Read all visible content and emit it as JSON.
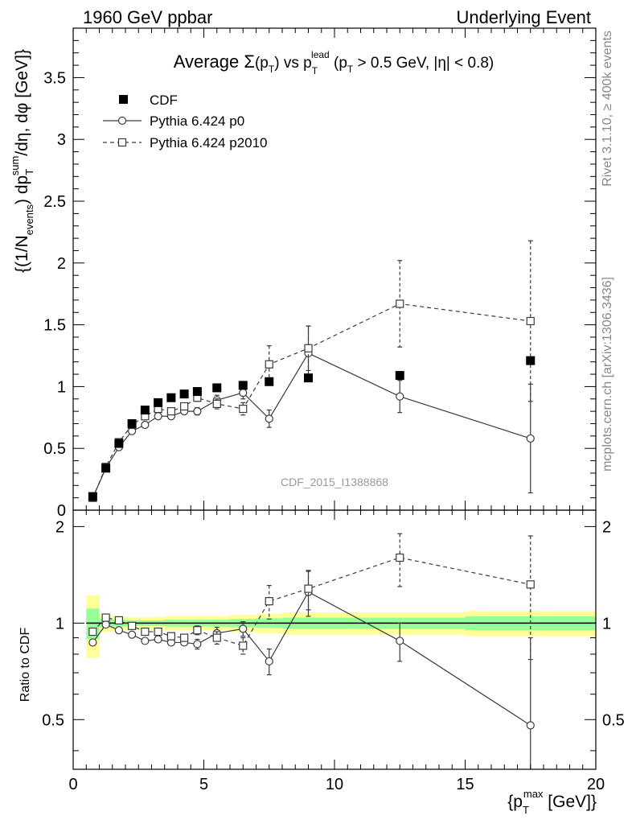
{
  "header": {
    "left": "1960 GeV ppbar",
    "right": "Underlying Event"
  },
  "side_labels": {
    "rivet": "Rivet 3.1.10, ≥ 400k events",
    "mcplots": "mcplots.cern.ch [arXiv:1306.3436]"
  },
  "watermark": "CDF_2015_I1388868",
  "title": {
    "prefix": "Average ",
    "sigma": "Σ",
    "pt": "(p",
    "pt_sub": "T",
    "pt_close": ")",
    "vs": " vs p",
    "lead_sub": "T",
    "lead_sup": "lead",
    "cut": " (p",
    "cut_sub": "T",
    "cut_rest": " > 0.5 GeV, |η| < 0.8)"
  },
  "ylabel_main": {
    "a": "{(1/N",
    "a_sub": "events",
    "b": ") dp",
    "b_sub": "T",
    "b_sup": "sum",
    "c": "/dη, dφ [GeV]}"
  },
  "ylabel_ratio": "Ratio to CDF",
  "xlabel": {
    "a": "{p",
    "a_sub": "T",
    "a_sup": "max",
    "b": " [GeV]}"
  },
  "colors": {
    "cdf": "#000000",
    "p0": "#3a3a3a",
    "p2010": "#3a3a3a",
    "band_inner": "#99ff99",
    "band_outer": "#ffff99",
    "gray_text": "#888888"
  },
  "chart_data": [
    {
      "type": "scatter",
      "panel": "main",
      "xlim": [
        0,
        20
      ],
      "ylim": [
        0,
        3.9
      ],
      "x_ticks": [
        "0",
        "5",
        "10",
        "15",
        "20"
      ],
      "y_ticks": [
        "0",
        "0.5",
        "1",
        "1.5",
        "2",
        "2.5",
        "3",
        "3.5"
      ],
      "legend_position": "top-left",
      "series": [
        {
          "name": "CDF",
          "marker": "filled-square",
          "x": [
            0.75,
            1.25,
            1.75,
            2.25,
            2.75,
            3.25,
            3.75,
            4.25,
            4.75,
            5.5,
            6.5,
            7.5,
            9.0,
            12.5,
            17.5
          ],
          "y": [
            0.11,
            0.34,
            0.54,
            0.7,
            0.81,
            0.87,
            0.91,
            0.94,
            0.96,
            0.99,
            1.01,
            1.04,
            1.07,
            1.09,
            1.21
          ]
        },
        {
          "name": "Pythia 6.424 p0",
          "marker": "open-circle",
          "line": "solid",
          "x": [
            0.75,
            1.25,
            1.75,
            2.25,
            2.75,
            3.25,
            3.75,
            4.25,
            4.75,
            5.5,
            6.5,
            7.5,
            9.0,
            12.5,
            17.5
          ],
          "y": [
            0.1,
            0.34,
            0.51,
            0.64,
            0.69,
            0.76,
            0.76,
            0.8,
            0.8,
            0.89,
            0.95,
            0.74,
            1.27,
            0.92,
            0.58
          ],
          "err": [
            0.01,
            0.01,
            0.01,
            0.01,
            0.01,
            0.02,
            0.02,
            0.02,
            0.03,
            0.04,
            0.05,
            0.07,
            0.22,
            0.13,
            0.44
          ]
        },
        {
          "name": "Pythia 6.424 p2010",
          "marker": "open-square",
          "line": "dashed",
          "x": [
            0.75,
            1.25,
            1.75,
            2.25,
            2.75,
            3.25,
            3.75,
            4.25,
            4.75,
            5.5,
            6.5,
            7.5,
            9.0,
            12.5,
            17.5
          ],
          "y": [
            0.1,
            0.35,
            0.55,
            0.69,
            0.76,
            0.82,
            0.8,
            0.84,
            0.91,
            0.86,
            0.82,
            1.18,
            1.31,
            1.67,
            1.53
          ],
          "err": [
            0.01,
            0.01,
            0.01,
            0.01,
            0.01,
            0.02,
            0.02,
            0.02,
            0.03,
            0.04,
            0.05,
            0.15,
            0.18,
            0.35,
            0.65
          ]
        }
      ]
    },
    {
      "type": "scatter",
      "panel": "ratio",
      "xlim": [
        0,
        20
      ],
      "ylim": [
        0.35,
        2.25
      ],
      "x_ticks": [
        "0",
        "5",
        "10",
        "15",
        "20"
      ],
      "y_ticks": [
        "0.5",
        "1",
        "2"
      ],
      "bands": {
        "edges": [
          0.5,
          1.0,
          1.5,
          2.0,
          2.5,
          3.0,
          3.5,
          4.0,
          4.5,
          5.0,
          6.0,
          7.0,
          8.0,
          10.0,
          15.0,
          20.0
        ],
        "inner": [
          0.11,
          0.03,
          0.025,
          0.02,
          0.02,
          0.02,
          0.025,
          0.025,
          0.025,
          0.025,
          0.03,
          0.035,
          0.04,
          0.04,
          0.05
        ],
        "outer": [
          0.22,
          0.06,
          0.05,
          0.045,
          0.045,
          0.045,
          0.05,
          0.05,
          0.05,
          0.05,
          0.06,
          0.07,
          0.08,
          0.08,
          0.09
        ]
      },
      "series": [
        {
          "name": "Pythia 6.424 p0",
          "marker": "open-circle",
          "line": "solid",
          "x": [
            0.75,
            1.25,
            1.75,
            2.25,
            2.75,
            3.25,
            3.75,
            4.25,
            4.75,
            5.5,
            6.5,
            7.5,
            9.0,
            12.5,
            17.5
          ],
          "y": [
            0.87,
            0.99,
            0.95,
            0.92,
            0.88,
            0.89,
            0.87,
            0.87,
            0.86,
            0.93,
            0.96,
            0.76,
            1.25,
            0.88,
            0.48
          ],
          "err": [
            0.01,
            0.01,
            0.01,
            0.01,
            0.01,
            0.02,
            0.02,
            0.02,
            0.03,
            0.04,
            0.05,
            0.07,
            0.2,
            0.12,
            0.42
          ]
        },
        {
          "name": "Pythia 6.424 p2010",
          "marker": "open-square",
          "line": "dashed",
          "x": [
            0.75,
            1.25,
            1.75,
            2.25,
            2.75,
            3.25,
            3.75,
            4.25,
            4.75,
            5.5,
            6.5,
            7.5,
            9.0,
            12.5,
            17.5
          ],
          "y": [
            0.94,
            1.04,
            1.02,
            0.98,
            0.94,
            0.94,
            0.91,
            0.9,
            0.95,
            0.9,
            0.85,
            1.17,
            1.28,
            1.6,
            1.32
          ],
          "err": [
            0.01,
            0.01,
            0.01,
            0.01,
            0.01,
            0.02,
            0.02,
            0.02,
            0.03,
            0.04,
            0.05,
            0.14,
            0.18,
            0.3,
            0.55
          ]
        }
      ]
    }
  ]
}
